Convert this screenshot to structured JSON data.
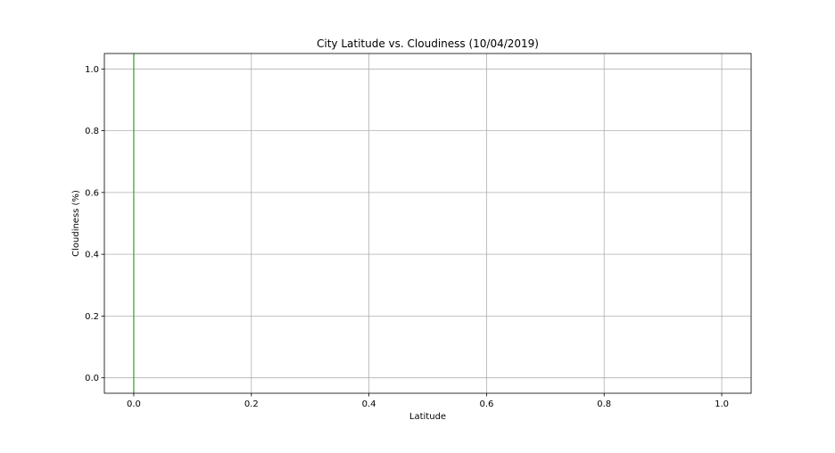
{
  "chart_data": {
    "type": "line",
    "title": "City Latitude vs. Cloudiness (10/04/2019)",
    "xlabel": "Latitude",
    "ylabel": "Cloudiness (%)",
    "xlim": [
      -0.05,
      1.05
    ],
    "ylim": [
      -0.05,
      1.05
    ],
    "xticks": [
      "0.0",
      "0.2",
      "0.4",
      "0.6",
      "0.8",
      "1.0"
    ],
    "yticks": [
      "0.0",
      "0.2",
      "0.4",
      "0.6",
      "0.8",
      "1.0"
    ],
    "grid": true,
    "series": [
      {
        "x": [
          0,
          0
        ],
        "y": [
          -0.05,
          1.05
        ],
        "color": "#2ca02c"
      }
    ]
  }
}
